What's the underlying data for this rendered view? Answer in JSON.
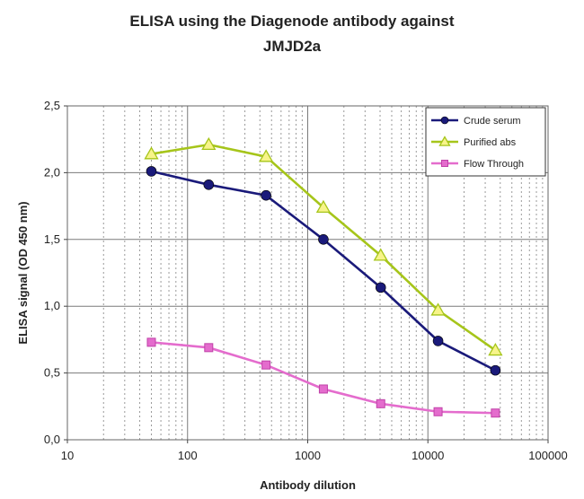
{
  "chart_data": {
    "type": "line",
    "title_lines": [
      "ELISA using the Diagenode antibody against",
      "JMJD2a"
    ],
    "xlabel": "Antibody dilution",
    "ylabel": "ELISA signal (OD 450 nm)",
    "x_scale": "log",
    "xlim": [
      10,
      100000
    ],
    "ylim": [
      0,
      2.5
    ],
    "x_ticks": [
      10,
      100,
      1000,
      10000,
      100000
    ],
    "x_tick_labels": [
      "10",
      "100",
      "1000",
      "10000",
      "100000"
    ],
    "y_ticks": [
      0,
      0.5,
      1.0,
      1.5,
      2.0,
      2.5
    ],
    "y_tick_labels": [
      "0,0",
      "0,5",
      "1,0",
      "1,5",
      "2,0",
      "2,5"
    ],
    "grid": true,
    "legend_position": "top-right",
    "x": [
      50,
      150,
      450,
      1350,
      4050,
      12150,
      36450
    ],
    "series": [
      {
        "name": "Crude serum",
        "values": [
          2.01,
          1.91,
          1.83,
          1.5,
          1.14,
          0.74,
          0.52
        ],
        "color": "#1a1a7a",
        "marker": "circle"
      },
      {
        "name": "Purified abs",
        "values": [
          2.14,
          2.21,
          2.12,
          1.74,
          1.38,
          0.97,
          0.67
        ],
        "color": "#a6c51a",
        "marker": "triangle"
      },
      {
        "name": "Flow Through",
        "values": [
          0.73,
          0.69,
          0.56,
          0.38,
          0.27,
          0.21,
          0.2
        ],
        "color": "#e46ccd",
        "marker": "square"
      }
    ]
  }
}
